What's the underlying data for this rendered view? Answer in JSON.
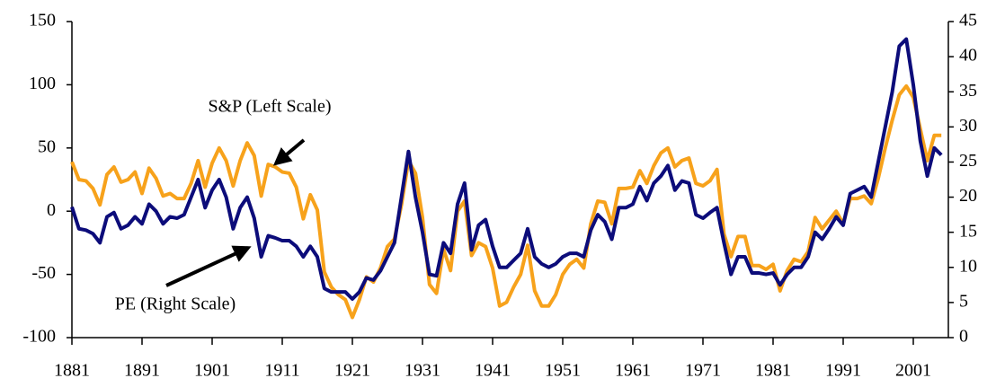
{
  "chart_data": {
    "type": "line",
    "x": [
      1881,
      1882,
      1883,
      1884,
      1885,
      1886,
      1887,
      1888,
      1889,
      1890,
      1891,
      1892,
      1893,
      1894,
      1895,
      1896,
      1897,
      1898,
      1899,
      1900,
      1901,
      1902,
      1903,
      1904,
      1905,
      1906,
      1907,
      1908,
      1909,
      1910,
      1911,
      1912,
      1913,
      1914,
      1915,
      1916,
      1917,
      1918,
      1919,
      1920,
      1921,
      1922,
      1923,
      1924,
      1925,
      1926,
      1927,
      1928,
      1929,
      1930,
      1931,
      1932,
      1933,
      1934,
      1935,
      1936,
      1937,
      1938,
      1939,
      1940,
      1941,
      1942,
      1943,
      1944,
      1945,
      1946,
      1947,
      1948,
      1949,
      1950,
      1951,
      1952,
      1953,
      1954,
      1955,
      1956,
      1957,
      1958,
      1959,
      1960,
      1961,
      1962,
      1963,
      1964,
      1965,
      1966,
      1967,
      1968,
      1969,
      1970,
      1971,
      1972,
      1973,
      1974,
      1975,
      1976,
      1977,
      1978,
      1979,
      1980,
      1981,
      1982,
      1983,
      1984,
      1985,
      1986,
      1987,
      1988,
      1989,
      1990,
      1991,
      1992,
      1993,
      1994,
      1995,
      1996,
      1997,
      1998,
      1999,
      2000,
      2001,
      2002,
      2003,
      2004,
      2005
    ],
    "series": [
      {
        "color": "#f7a21b",
        "values": [
          39,
          25,
          24,
          18,
          5,
          29,
          35,
          23,
          25,
          31,
          14,
          34,
          26,
          12,
          14,
          10,
          10,
          22,
          40,
          19,
          38,
          50,
          40,
          20,
          40,
          54,
          44,
          12,
          37,
          35,
          31,
          30,
          19,
          -6,
          13,
          1,
          -48,
          -60,
          -66,
          -70,
          -84,
          -70,
          -52,
          -56,
          -45,
          -28,
          -22,
          5,
          40,
          30,
          -5,
          -58,
          -65,
          -30,
          -47,
          0,
          8,
          -35,
          -25,
          -28,
          -45,
          -75,
          -72,
          -60,
          -50,
          -27,
          -63,
          -75,
          -75,
          -66,
          -50,
          -42,
          -38,
          -45,
          -10,
          8,
          7,
          -10,
          18,
          18,
          19,
          32,
          22,
          36,
          46,
          50,
          35,
          40,
          42,
          22,
          20,
          24,
          33,
          -18,
          -36,
          -20,
          -20,
          -43,
          -43,
          -46,
          -42,
          -63,
          -47,
          -38,
          -40,
          -32,
          -5,
          -14,
          -7,
          0,
          -10,
          10,
          10,
          12,
          6,
          26,
          50,
          72,
          92,
          99,
          90,
          65,
          40,
          60,
          60
        ]
      },
      {
        "color": "#0c0c7a",
        "axis": "y2",
        "values": [
          18.6,
          15.5,
          15.3,
          14.8,
          13.5,
          17.2,
          17.8,
          15.5,
          16,
          17.2,
          16.2,
          19,
          18,
          16.2,
          17.2,
          17,
          17.5,
          20,
          22.5,
          18.5,
          21,
          22.5,
          20,
          15.5,
          18.5,
          20,
          17,
          11.5,
          14.5,
          14.2,
          13.8,
          13.8,
          13,
          11.5,
          13,
          11.5,
          7,
          6.5,
          6.5,
          6.5,
          5.5,
          6.5,
          8.5,
          8.2,
          9.5,
          11.5,
          13.5,
          20,
          26.5,
          20,
          15,
          9,
          8.8,
          13.5,
          12,
          19,
          22,
          12.5,
          16,
          16.8,
          13,
          10,
          10,
          11,
          12,
          15.5,
          11.5,
          10.5,
          10,
          10.5,
          11.5,
          12,
          12,
          11.5,
          15.3,
          17.5,
          16.5,
          14,
          18.5,
          18.5,
          19,
          21.5,
          19.5,
          22,
          23,
          24.5,
          21,
          22.3,
          22,
          17.5,
          17,
          17.8,
          18.5,
          13.5,
          9,
          11.5,
          11.5,
          9.2,
          9.2,
          9,
          9.2,
          7.5,
          9,
          10,
          10,
          11.5,
          15,
          14,
          15.5,
          17.2,
          16,
          20.5,
          21,
          21.5,
          20,
          25,
          30,
          35,
          41.5,
          42.5,
          36,
          28,
          23,
          27,
          26
        ]
      }
    ],
    "annotations": [
      "S&P (Left Scale)",
      "PE (Right Scale)"
    ],
    "xlim": [
      1881,
      2006
    ],
    "xticks": [
      1881,
      1891,
      1901,
      1911,
      1921,
      1931,
      1941,
      1951,
      1961,
      1971,
      1981,
      1991,
      2001
    ],
    "ylim": [
      -100,
      150
    ],
    "yticks": [
      -100,
      -50,
      0,
      50,
      100,
      150
    ],
    "y2lim": [
      0,
      45
    ],
    "y2ticks": [
      0,
      5,
      10,
      15,
      20,
      25,
      30,
      35,
      40,
      45
    ]
  }
}
